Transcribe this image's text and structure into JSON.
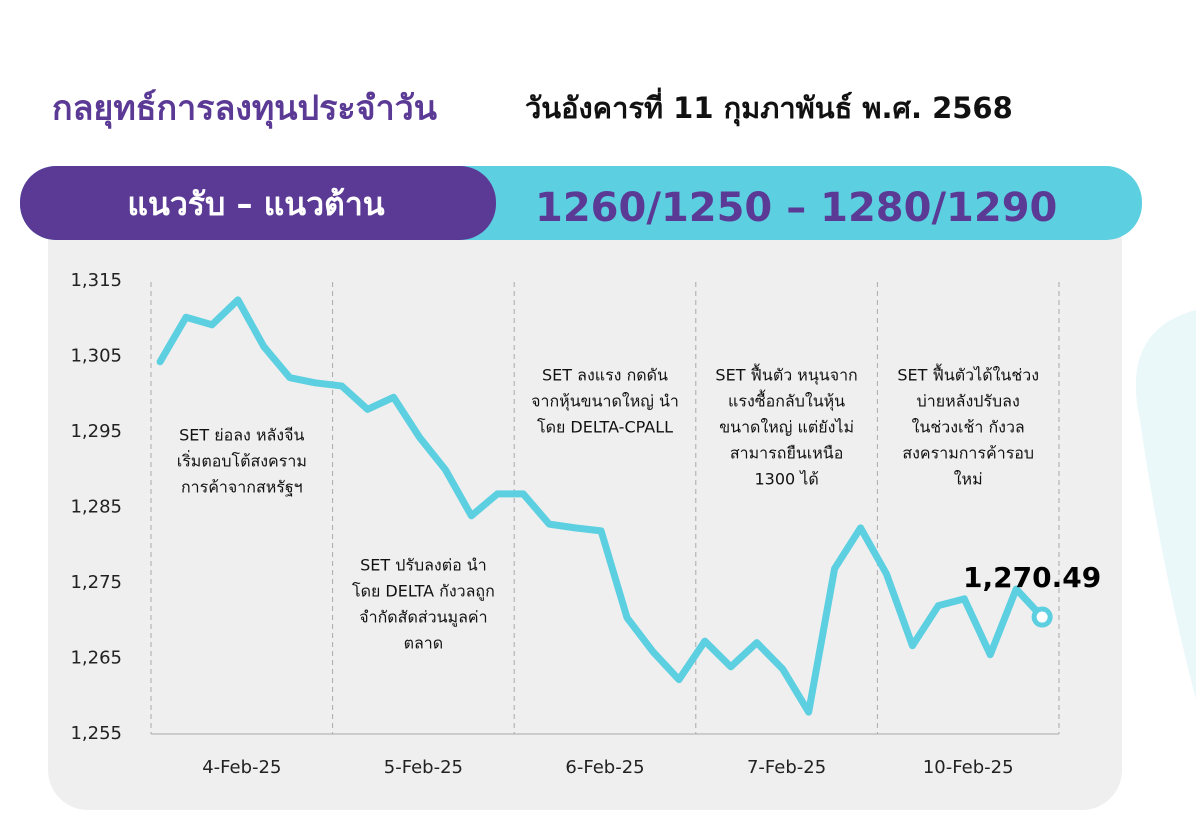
{
  "title": "กลยุทธ์การลงทุนประจำวัน",
  "date": "วันอังคารที่ 11 กุมภาพันธ์ พ.ศ. 2568",
  "banner": {
    "label": "แนวรับ – แนวต้าน",
    "range": "1260/1250 – 1280/1290"
  },
  "chart_data": {
    "type": "line",
    "categories": [
      "4-Feb-25",
      "5-Feb-25",
      "6-Feb-25",
      "7-Feb-25",
      "10-Feb-25"
    ],
    "series": [
      {
        "color": "#5ccfe0",
        "values": [
          [
            1304.3,
            1310.2,
            1309.2,
            1312.5,
            1306.3,
            1302.2,
            1301.5
          ],
          [
            1301.1,
            1298.0,
            1299.6,
            1294.3,
            1290.0,
            1283.9,
            1286.8
          ],
          [
            1286.8,
            1282.8,
            1282.3,
            1281.9,
            1270.4,
            1265.9,
            1262.2
          ],
          [
            1267.3,
            1263.9,
            1267.1,
            1263.6,
            1257.9,
            1276.9,
            1282.3
          ],
          [
            1276.2,
            1266.7,
            1272.0,
            1272.9,
            1265.5,
            1274.2,
            1270.49
          ]
        ],
        "value_labels": [
          [
            null,
            null,
            null,
            null,
            null,
            null,
            null
          ],
          [
            null,
            null,
            null,
            null,
            null,
            null,
            null
          ],
          [
            null,
            null,
            null,
            null,
            null,
            null,
            null
          ],
          [
            null,
            null,
            null,
            null,
            null,
            null,
            null
          ],
          [
            null,
            null,
            null,
            null,
            null,
            null,
            "1,270.49"
          ]
        ]
      }
    ],
    "ylim": [
      1255,
      1315
    ],
    "yticks": [
      {
        "value": 1255,
        "label": "1,255"
      },
      {
        "value": 1265,
        "label": "1,265"
      },
      {
        "value": 1275,
        "label": "1,275"
      },
      {
        "value": 1285,
        "label": "1,285"
      },
      {
        "value": 1295,
        "label": "1,295"
      },
      {
        "value": 1305,
        "label": "1,305"
      },
      {
        "value": 1315,
        "label": "1,315"
      }
    ],
    "annotations": [
      [
        "SET ย่อลง หลังจีน",
        "เริ่มตอบโต้สงคราม",
        "การค้าจากสหรัฐฯ"
      ],
      [
        "SET ปรับลงต่อ นำ",
        "โดย DELTA กังวลถูก",
        "จำกัดสัดส่วนมูลค่า",
        "ตลาด"
      ],
      [
        "SET ลงแรง กดดัน",
        "จากหุ้นขนาดใหญ่ นำ",
        "โดย DELTA-CPALL"
      ],
      [
        "SET ฟื้นตัว หนุนจาก",
        "แรงซื้อกลับในหุ้น",
        "ขนาดใหญ่ แต่ยังไม่",
        "สามารถยืนเหนือ",
        "1300 ได้"
      ],
      [
        "SET ฟื้นตัวได้ในช่วง",
        "บ่ายหลังปรับลง",
        "ในช่วงเช้า กังวล",
        "สงครามการค้ารอบ",
        "ใหม่"
      ]
    ]
  }
}
